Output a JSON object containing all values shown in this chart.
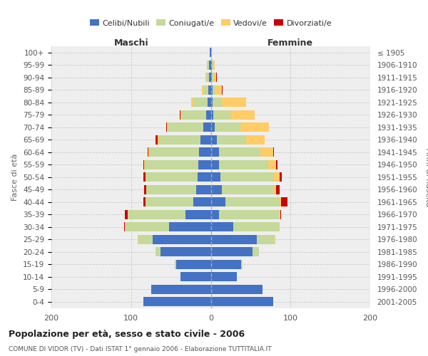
{
  "age_groups": [
    "0-4",
    "5-9",
    "10-14",
    "15-19",
    "20-24",
    "25-29",
    "30-34",
    "35-39",
    "40-44",
    "45-49",
    "50-54",
    "55-59",
    "60-64",
    "65-69",
    "70-74",
    "75-79",
    "80-84",
    "85-89",
    "90-94",
    "95-99",
    "100+"
  ],
  "birth_years": [
    "2001-2005",
    "1996-2000",
    "1991-1995",
    "1986-1990",
    "1981-1985",
    "1976-1980",
    "1971-1975",
    "1966-1970",
    "1961-1965",
    "1956-1960",
    "1951-1955",
    "1946-1950",
    "1941-1945",
    "1936-1940",
    "1931-1935",
    "1926-1930",
    "1921-1925",
    "1916-1920",
    "1911-1915",
    "1906-1910",
    "≤ 1905"
  ],
  "maschi": {
    "celibi": [
      85,
      75,
      38,
      43,
      63,
      73,
      52,
      32,
      22,
      18,
      17,
      16,
      15,
      13,
      9,
      6,
      4,
      3,
      2,
      2,
      1
    ],
    "coniugati": [
      0,
      0,
      0,
      2,
      6,
      18,
      56,
      72,
      60,
      63,
      65,
      67,
      62,
      52,
      44,
      30,
      18,
      6,
      4,
      2,
      0
    ],
    "vedovi": [
      0,
      0,
      0,
      0,
      0,
      1,
      0,
      0,
      0,
      0,
      0,
      1,
      1,
      2,
      2,
      2,
      3,
      2,
      1,
      1,
      0
    ],
    "divorziati": [
      0,
      0,
      0,
      0,
      0,
      0,
      1,
      4,
      3,
      3,
      3,
      1,
      1,
      2,
      1,
      1,
      0,
      0,
      0,
      0,
      0
    ]
  },
  "femmine": {
    "nubili": [
      78,
      65,
      33,
      38,
      52,
      58,
      28,
      10,
      18,
      14,
      12,
      10,
      10,
      8,
      5,
      3,
      2,
      2,
      1,
      1,
      0
    ],
    "coniugate": [
      0,
      0,
      0,
      2,
      8,
      22,
      58,
      76,
      68,
      65,
      67,
      62,
      52,
      36,
      32,
      22,
      12,
      4,
      2,
      2,
      0
    ],
    "vedove": [
      0,
      0,
      0,
      0,
      0,
      1,
      0,
      1,
      2,
      3,
      7,
      10,
      16,
      24,
      36,
      30,
      30,
      8,
      4,
      2,
      0
    ],
    "divorziate": [
      0,
      0,
      0,
      0,
      0,
      0,
      0,
      1,
      8,
      4,
      3,
      2,
      1,
      0,
      0,
      0,
      0,
      1,
      1,
      0,
      0
    ]
  },
  "colors": {
    "celibi_nubili": "#4472C4",
    "coniugati": "#C5D99A",
    "vedovi": "#FFCC66",
    "divorziati": "#CC0000"
  },
  "xlim": 200,
  "title": "Popolazione per età, sesso e stato civile - 2006",
  "subtitle": "COMUNE DI VIDOR (TV) - Dati ISTAT 1° gennaio 2006 - Elaborazione TUTTITALIA.IT",
  "ylabel_left": "Fasce di età",
  "ylabel_right": "Anni di nascita",
  "xlabel_maschi": "Maschi",
  "xlabel_femmine": "Femmine",
  "legend_labels": [
    "Celibi/Nubili",
    "Coniugati/e",
    "Vedovi/e",
    "Divorziati/e"
  ],
  "background_color": "#ffffff",
  "plot_bg_color": "#eeeeee",
  "bar_height": 0.75
}
